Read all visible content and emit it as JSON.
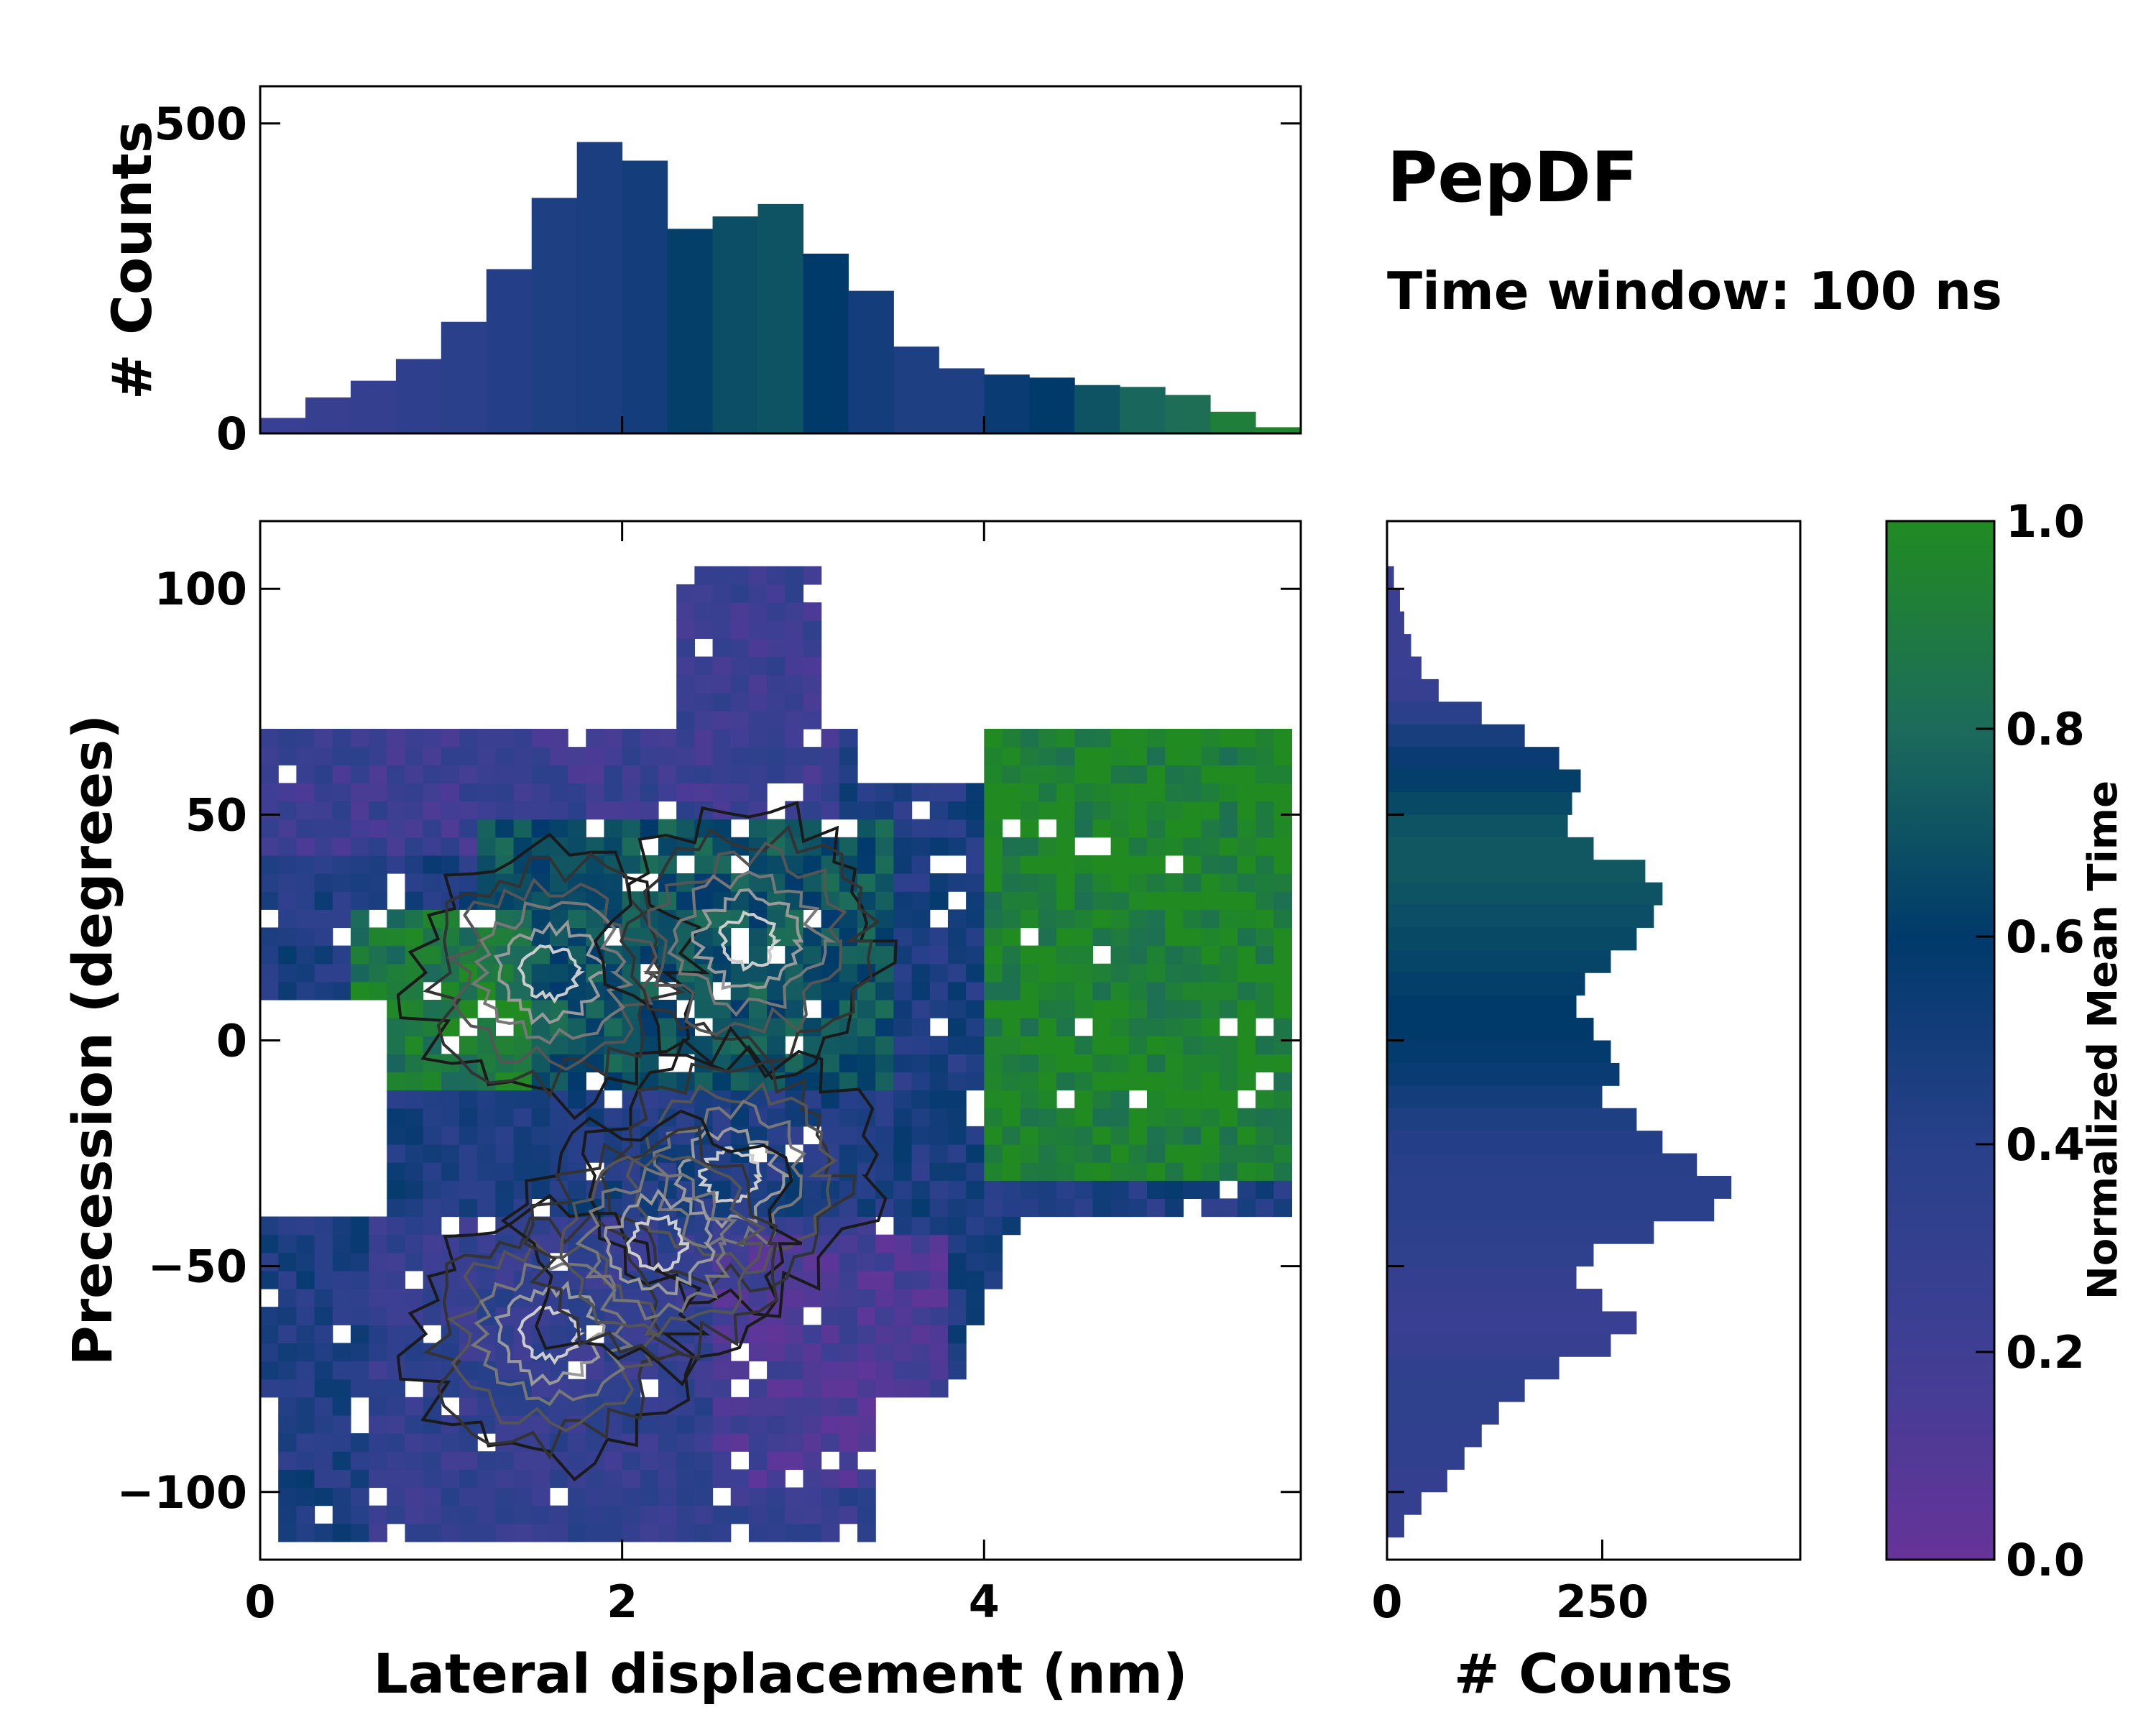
{
  "chart_data": [
    {
      "id": "top-histogram",
      "type": "bar",
      "ylabel": "# Counts",
      "xlim": [
        0,
        5.75
      ],
      "ylim": [
        0,
        560
      ],
      "yticks": [
        0,
        500
      ],
      "ytick_labels": [
        "0",
        "500"
      ],
      "bin_centers_nm": [
        0.125,
        0.375,
        0.625,
        0.875,
        1.125,
        1.375,
        1.625,
        1.875,
        2.125,
        2.375,
        2.625,
        2.875,
        3.125,
        3.375,
        3.625,
        3.875,
        4.125,
        4.375,
        4.625,
        4.875,
        5.125,
        5.375,
        5.625
      ],
      "values": [
        25,
        58,
        85,
        120,
        180,
        265,
        380,
        470,
        440,
        330,
        350,
        370,
        290,
        230,
        140,
        105,
        95,
        90,
        78,
        75,
        62,
        35,
        10
      ],
      "normalized_mean_time": [
        0.25,
        0.28,
        0.3,
        0.35,
        0.38,
        0.42,
        0.45,
        0.47,
        0.5,
        0.62,
        0.68,
        0.7,
        0.6,
        0.5,
        0.45,
        0.45,
        0.55,
        0.6,
        0.7,
        0.78,
        0.82,
        0.92,
        0.95
      ]
    },
    {
      "id": "main-heatmap",
      "type": "heatmap",
      "xlabel": "Lateral displacement (nm)",
      "ylabel": "Precession (degrees)",
      "xlim": [
        0,
        5.75
      ],
      "ylim": [
        -115,
        115
      ],
      "xticks": [
        0,
        2,
        4
      ],
      "xtick_labels": [
        "0",
        "2",
        "4"
      ],
      "yticks": [
        100,
        50,
        0,
        -50,
        -100
      ],
      "ytick_labels": [
        "100",
        "50",
        "0",
        "−50",
        "−100"
      ],
      "density_peaks": [
        {
          "x": 1.6,
          "y": 15
        },
        {
          "x": 2.7,
          "y": 22
        },
        {
          "x": 2.6,
          "y": -30
        },
        {
          "x": 1.6,
          "y": -65
        },
        {
          "x": 2.2,
          "y": -45
        }
      ],
      "time_regions": [
        {
          "name": "early-top",
          "x_range": [
            0.0,
            3.2
          ],
          "y_range": [
            40,
            105
          ],
          "normalized_mean_time": 0.25
        },
        {
          "name": "mid-center",
          "x_range": [
            1.2,
            3.5
          ],
          "y_range": [
            -10,
            50
          ],
          "normalized_mean_time": 0.7
        },
        {
          "name": "late-right",
          "x_range": [
            4.0,
            5.75
          ],
          "y_range": [
            -30,
            70
          ],
          "normalized_mean_time": 0.95
        },
        {
          "name": "mid-left",
          "x_range": [
            0.5,
            1.5
          ],
          "y_range": [
            -10,
            30
          ],
          "normalized_mean_time": 0.9
        },
        {
          "name": "early-bottom",
          "x_range": [
            0.6,
            3.5
          ],
          "y_range": [
            -110,
            -40
          ],
          "normalized_mean_time": 0.3
        },
        {
          "name": "early-lower-right",
          "x_range": [
            2.5,
            3.8
          ],
          "y_range": [
            -100,
            -45
          ],
          "normalized_mean_time": 0.15
        }
      ]
    },
    {
      "id": "right-histogram",
      "type": "bar",
      "orientation": "horizontal",
      "xlabel": "# Counts",
      "xlim": [
        0,
        480
      ],
      "xticks": [
        0,
        250
      ],
      "xtick_labels": [
        "0",
        "250"
      ],
      "ylim": [
        -115,
        115
      ],
      "bin_centers_deg": [
        102.5,
        97.5,
        92.5,
        87.5,
        82.5,
        77.5,
        72.5,
        67.5,
        62.5,
        57.5,
        52.5,
        47.5,
        42.5,
        37.5,
        32.5,
        27.5,
        22.5,
        17.5,
        12.5,
        7.5,
        2.5,
        -2.5,
        -7.5,
        -12.5,
        -17.5,
        -22.5,
        -27.5,
        -32.5,
        -37.5,
        -42.5,
        -47.5,
        -52.5,
        -57.5,
        -62.5,
        -67.5,
        -72.5,
        -77.5,
        -82.5,
        -87.5,
        -92.5,
        -97.5,
        -102.5,
        -107.5
      ],
      "values": [
        8,
        15,
        20,
        28,
        40,
        60,
        110,
        160,
        200,
        225,
        215,
        210,
        240,
        300,
        320,
        310,
        290,
        260,
        230,
        220,
        240,
        260,
        270,
        250,
        290,
        320,
        360,
        400,
        380,
        310,
        240,
        220,
        250,
        290,
        260,
        200,
        160,
        130,
        110,
        90,
        70,
        40,
        20
      ],
      "normalized_mean_time": [
        0.25,
        0.25,
        0.24,
        0.24,
        0.25,
        0.28,
        0.38,
        0.48,
        0.55,
        0.62,
        0.66,
        0.7,
        0.72,
        0.72,
        0.7,
        0.68,
        0.66,
        0.64,
        0.62,
        0.6,
        0.6,
        0.58,
        0.55,
        0.5,
        0.45,
        0.42,
        0.4,
        0.38,
        0.38,
        0.36,
        0.34,
        0.3,
        0.27,
        0.25,
        0.28,
        0.32,
        0.34,
        0.34,
        0.33,
        0.32,
        0.3,
        0.3,
        0.3
      ]
    },
    {
      "id": "colorbar",
      "type": "colorbar",
      "label": "Normalized Mean Time",
      "range": [
        0.0,
        1.0
      ],
      "ticks": [
        0.0,
        0.2,
        0.4,
        0.6,
        0.8,
        1.0
      ],
      "tick_labels": [
        "0.0",
        "0.2",
        "0.4",
        "0.6",
        "0.8",
        "1.0"
      ],
      "colormap_stops": [
        "#663399",
        "#3f3f94",
        "#28408a",
        "#003a6b",
        "#1c6b5b",
        "#218b22"
      ]
    }
  ],
  "annotations": {
    "title": "PepDF",
    "subtitle": "Time window: 100 ns"
  }
}
